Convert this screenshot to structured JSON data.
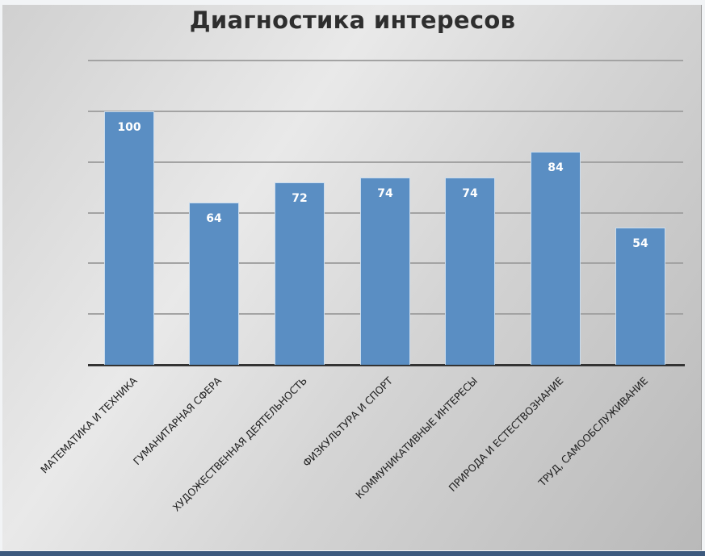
{
  "chart_data": {
    "type": "bar",
    "title": "Диагностика интересов",
    "categories": [
      "МАТЕМАТИКА И ТЕХНИКА",
      "ГУМАНИТАРНАЯ СФЕРА",
      "ХУДОЖЕСТВЕННАЯ ДЕЯТЕЛЬНОСТЬ",
      "ФИЗКУЛЬТУРА И СПОРТ",
      "КОММУНИКАТИВНЫЕ ИНТЕРЕСЫ",
      "ПРИРОДА И ЕСТЕСТВОЗНАНИЕ",
      "ТРУД, САМООБСЛУЖИВАНИЕ"
    ],
    "values": [
      100,
      64,
      72,
      74,
      74,
      84,
      54
    ],
    "value_labels": [
      "100",
      "64",
      "72",
      "74",
      "74",
      "84",
      "54"
    ],
    "xlabel": "",
    "ylabel": "",
    "ylim": [
      0,
      120
    ],
    "gridlines": [
      20,
      40,
      60,
      80,
      100,
      120
    ],
    "grid": true,
    "legend": null,
    "bar_color": "#5a8ec3"
  }
}
